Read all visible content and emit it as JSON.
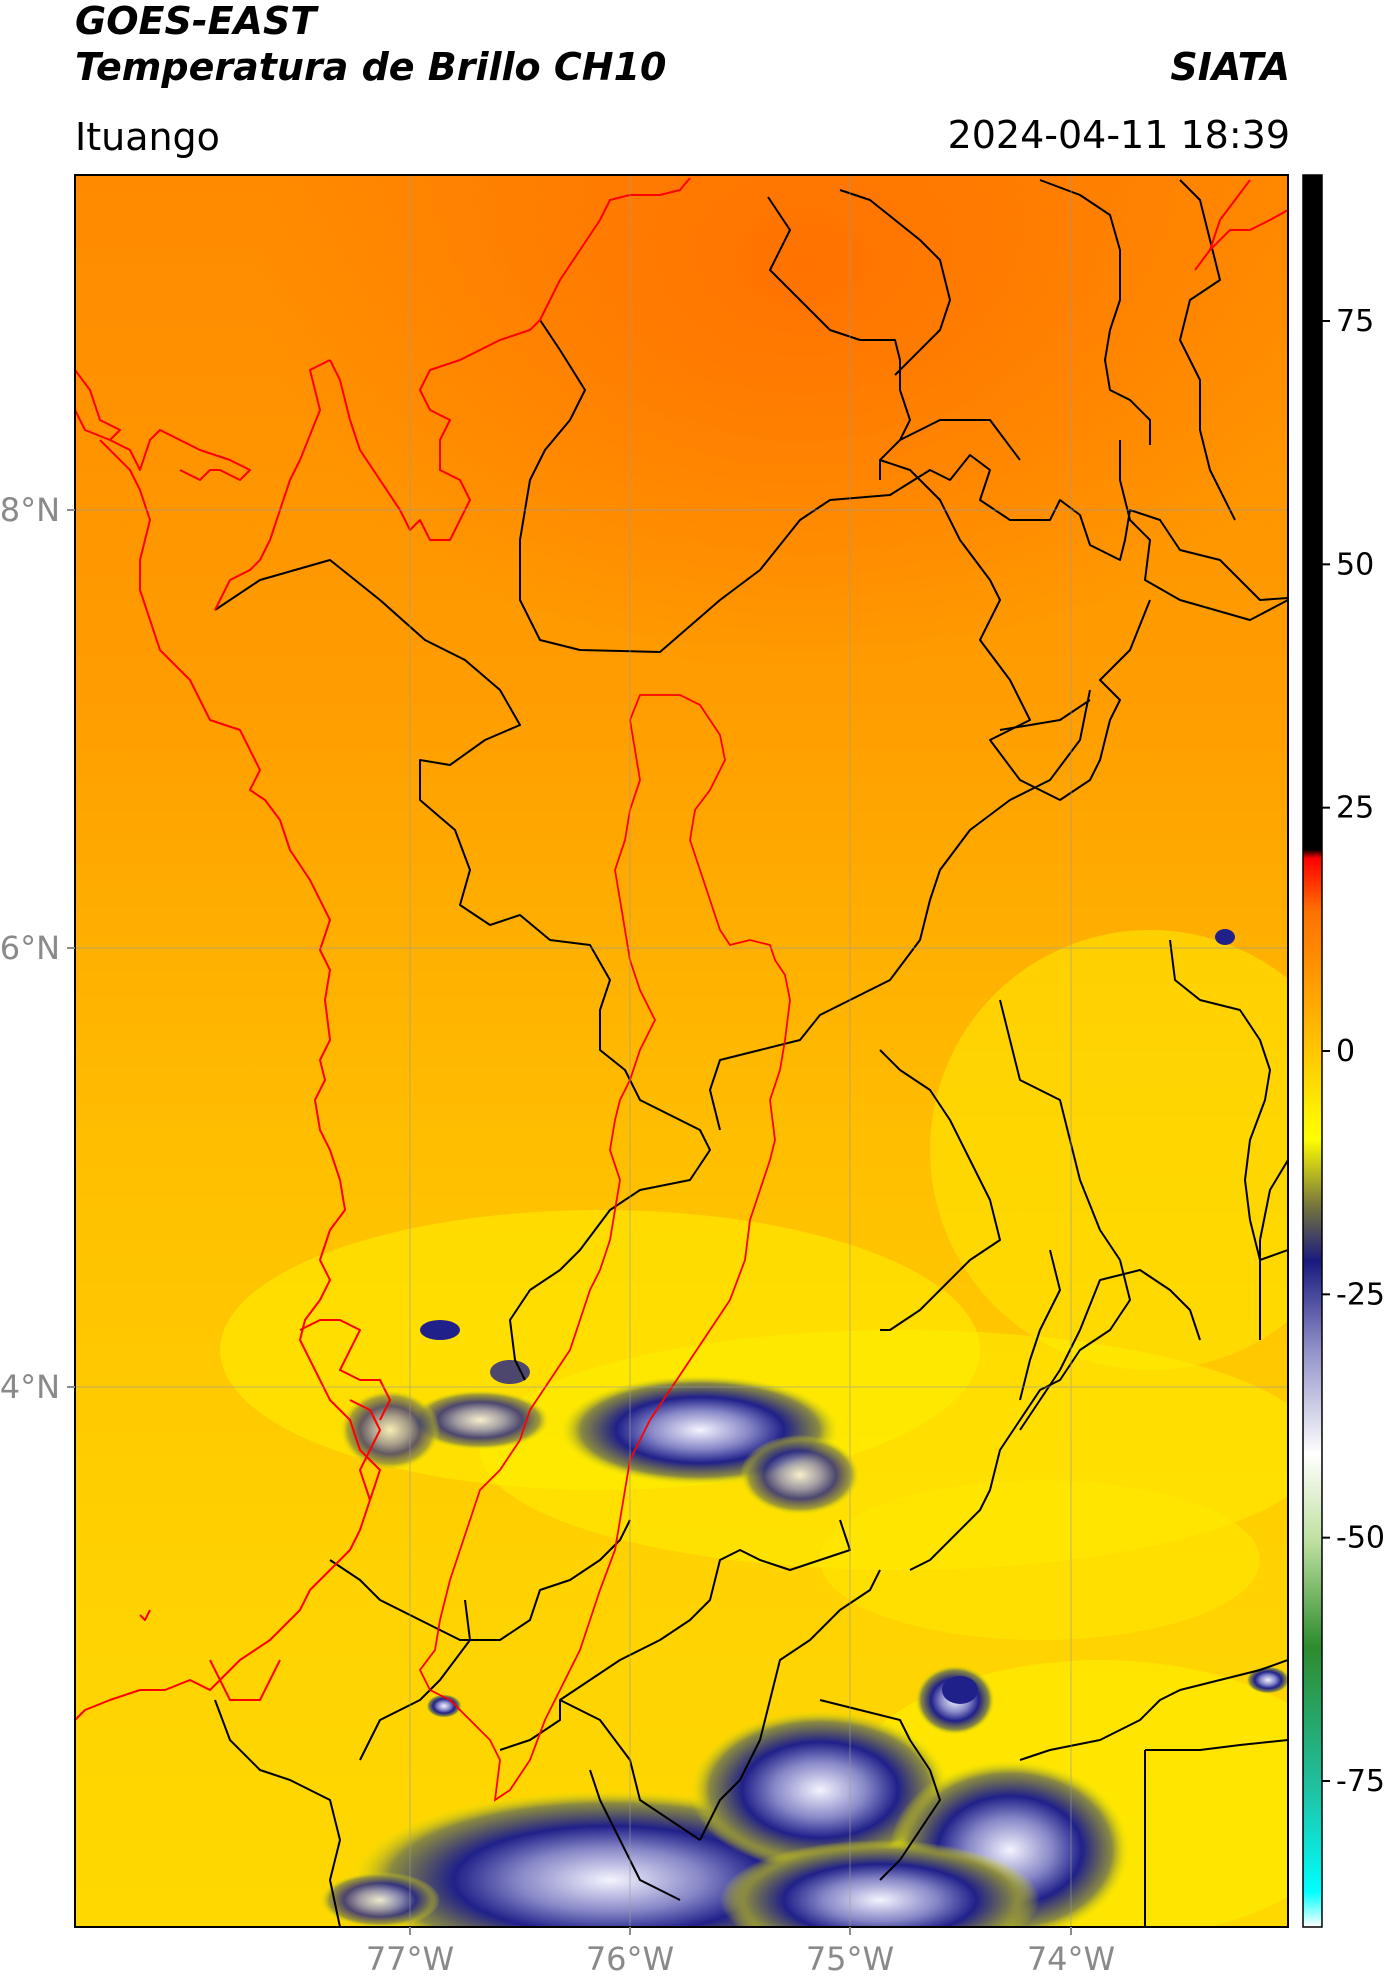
{
  "header": {
    "title_line1": "GOES-EAST",
    "title_line2": "Temperatura de Brillo CH10",
    "org": "SIATA",
    "location": "Ituango",
    "datetime": "2024-04-11 18:39"
  },
  "map": {
    "lat_labels": [
      "8°N",
      "6°N",
      "4°N"
    ],
    "lon_labels": [
      "77°W",
      "76°W",
      "75°W",
      "74°W"
    ],
    "country_border_color": "#ff0000",
    "department_border_color": "#000000",
    "basin_outline_color": "#ff0000"
  },
  "colorbar": {
    "ticks": [
      "75",
      "50",
      "25",
      "0",
      "-25",
      "-50",
      "-75"
    ],
    "tick_values": [
      75,
      50,
      25,
      0,
      -25,
      -50,
      -75
    ],
    "range": [
      -90,
      90
    ],
    "colors": {
      "warm_black": "#000000",
      "red": "#ff0000",
      "orange": "#ff8c00",
      "yellow": "#ffff00",
      "navy": "#1a1a80",
      "white": "#ffffff",
      "green": "#2e8b2e",
      "cyan": "#00ffff"
    }
  }
}
